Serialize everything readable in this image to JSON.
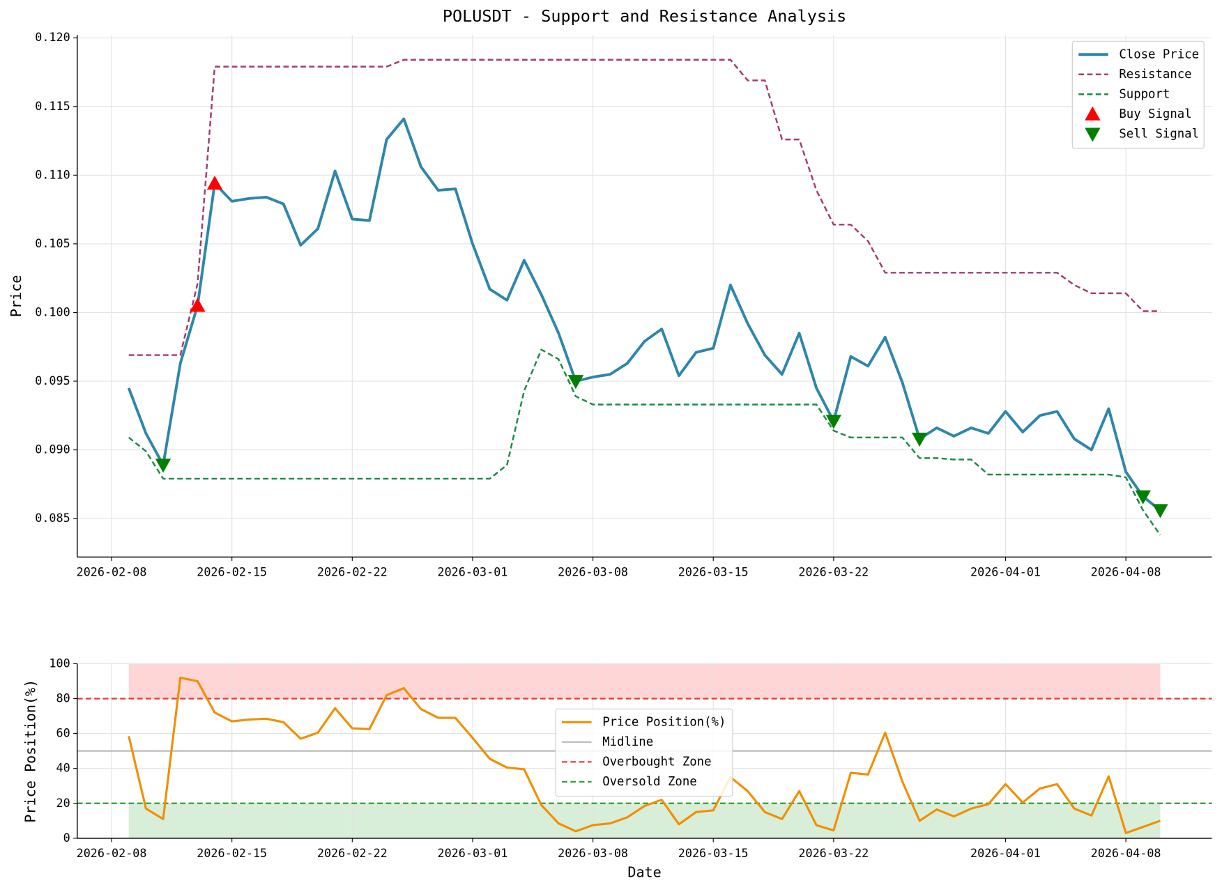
{
  "chart_data": [
    {
      "type": "line",
      "title": "POLUSDT - Support and Resistance Analysis",
      "y_label": "Price",
      "x": [
        "2026-02-09",
        "2026-02-10",
        "2026-02-11",
        "2026-02-12",
        "2026-02-13",
        "2026-02-14",
        "2026-02-15",
        "2026-02-16",
        "2026-02-17",
        "2026-02-18",
        "2026-02-19",
        "2026-02-20",
        "2026-02-21",
        "2026-02-22",
        "2026-02-23",
        "2026-02-24",
        "2026-02-25",
        "2026-02-26",
        "2026-02-27",
        "2026-02-28",
        "2026-03-01",
        "2026-03-02",
        "2026-03-03",
        "2026-03-04",
        "2026-03-05",
        "2026-03-06",
        "2026-03-07",
        "2026-03-08",
        "2026-03-09",
        "2026-03-10",
        "2026-03-11",
        "2026-03-12",
        "2026-03-13",
        "2026-03-14",
        "2026-03-15",
        "2026-03-16",
        "2026-03-17",
        "2026-03-18",
        "2026-03-19",
        "2026-03-20",
        "2026-03-21",
        "2026-03-22",
        "2026-03-23",
        "2026-03-24",
        "2026-03-25",
        "2026-03-26",
        "2026-03-27",
        "2026-03-28",
        "2026-03-29",
        "2026-03-30",
        "2026-03-31",
        "2026-04-01",
        "2026-04-02",
        "2026-04-03",
        "2026-04-04",
        "2026-04-05",
        "2026-04-06",
        "2026-04-07",
        "2026-04-08",
        "2026-04-09",
        "2026-04-10"
      ],
      "series": [
        {
          "name": "Close Price",
          "color": "#2E86AB",
          "style": "solid",
          "width": 3.5,
          "values": [
            0.0945,
            0.0912,
            0.0889,
            0.0963,
            0.1005,
            0.1094,
            0.1081,
            0.1083,
            0.1084,
            0.1079,
            0.1049,
            0.1061,
            0.1103,
            0.1068,
            0.1067,
            0.1126,
            0.1141,
            0.1106,
            0.1089,
            0.109,
            0.105,
            0.1017,
            0.1009,
            0.1038,
            0.1013,
            0.0985,
            0.095,
            0.0953,
            0.0955,
            0.0963,
            0.0979,
            0.0988,
            0.0954,
            0.0971,
            0.0974,
            0.102,
            0.0992,
            0.0969,
            0.0955,
            0.0985,
            0.0945,
            0.0921,
            0.0968,
            0.0961,
            0.0982,
            0.0949,
            0.0908,
            0.0916,
            0.091,
            0.0916,
            0.0912,
            0.0928,
            0.0913,
            0.0925,
            0.0928,
            0.0908,
            0.09,
            0.093,
            0.0884,
            0.0866,
            0.0856
          ]
        },
        {
          "name": "Resistance",
          "color": "#A23B72",
          "style": "dashed",
          "width": 2.2,
          "values": [
            0.0969,
            0.0969,
            0.0969,
            0.0969,
            0.1021,
            0.1179,
            0.1179,
            0.1179,
            0.1179,
            0.1179,
            0.1179,
            0.1179,
            0.1179,
            0.1179,
            0.1179,
            0.1179,
            0.1184,
            0.1184,
            0.1184,
            0.1184,
            0.1184,
            0.1184,
            0.1184,
            0.1184,
            0.1184,
            0.1184,
            0.1184,
            0.1184,
            0.1184,
            0.1184,
            0.1184,
            0.1184,
            0.1184,
            0.1184,
            0.1184,
            0.1184,
            0.1169,
            0.1169,
            0.1126,
            0.1126,
            0.1089,
            0.1064,
            0.1064,
            0.1052,
            0.1029,
            0.1029,
            0.1029,
            0.1029,
            0.1029,
            0.1029,
            0.1029,
            0.1029,
            0.1029,
            0.1029,
            0.1029,
            0.102,
            0.1014,
            0.1014,
            0.1014,
            0.1001,
            0.1001
          ]
        },
        {
          "name": "Support",
          "color": "#1B8A45",
          "style": "dashed",
          "width": 2.2,
          "values": [
            0.0909,
            0.0899,
            0.0879,
            0.0879,
            0.0879,
            0.0879,
            0.0879,
            0.0879,
            0.0879,
            0.0879,
            0.0879,
            0.0879,
            0.0879,
            0.0879,
            0.0879,
            0.0879,
            0.0879,
            0.0879,
            0.0879,
            0.0879,
            0.0879,
            0.0879,
            0.0889,
            0.0943,
            0.0973,
            0.0966,
            0.0939,
            0.0933,
            0.0933,
            0.0933,
            0.0933,
            0.0933,
            0.0933,
            0.0933,
            0.0933,
            0.0933,
            0.0933,
            0.0933,
            0.0933,
            0.0933,
            0.0933,
            0.0914,
            0.0909,
            0.0909,
            0.0909,
            0.0909,
            0.0894,
            0.0894,
            0.0893,
            0.0893,
            0.0882,
            0.0882,
            0.0882,
            0.0882,
            0.0882,
            0.0882,
            0.0882,
            0.0882,
            0.088,
            0.0856,
            0.0838
          ]
        },
        {
          "name": "Buy Signal",
          "color": "#FF0000",
          "marker": "up",
          "x": [
            "2026-02-13",
            "2026-02-14"
          ],
          "values": [
            0.1005,
            0.1094
          ]
        },
        {
          "name": "Sell Signal",
          "color": "#008000",
          "marker": "down",
          "x": [
            "2026-02-11",
            "2026-03-07",
            "2026-03-22",
            "2026-03-27",
            "2026-04-09",
            "2026-04-10"
          ],
          "values": [
            0.0889,
            0.095,
            0.0921,
            0.0908,
            0.0866,
            0.0856
          ]
        }
      ],
      "xlim": [
        "2026-02-06",
        "2026-04-13"
      ],
      "xticks": [
        "2026-02-08",
        "2026-02-15",
        "2026-02-22",
        "2026-03-01",
        "2026-03-08",
        "2026-03-15",
        "2026-03-22",
        "2026-04-01",
        "2026-04-08"
      ],
      "ylim": [
        0.0822,
        0.1202
      ],
      "yticks": [
        {
          "value": 0.085,
          "label": "0.085"
        },
        {
          "value": 0.09,
          "label": "0.090"
        },
        {
          "value": 0.095,
          "label": "0.095"
        },
        {
          "value": 0.1,
          "label": "0.100"
        },
        {
          "value": 0.105,
          "label": "0.105"
        },
        {
          "value": 0.11,
          "label": "0.110"
        },
        {
          "value": 0.115,
          "label": "0.115"
        },
        {
          "value": 0.12,
          "label": "0.120"
        }
      ],
      "grid": true,
      "legend": "upper right"
    },
    {
      "type": "line",
      "x_label": "Date",
      "y_label": "Price Position(%)",
      "series": [
        {
          "name": "Price Position(%)",
          "color": "#F18F01",
          "style": "solid",
          "width": 2.8,
          "values": [
            58.5,
            17,
            11,
            92,
            90,
            72,
            67,
            68,
            68.5,
            66.5,
            57,
            60.5,
            74.5,
            63,
            62.5,
            82,
            86,
            74,
            69,
            69,
            57.5,
            45.5,
            40.5,
            39.5,
            19,
            8.5,
            4,
            7.5,
            8.5,
            12,
            18.5,
            22,
            8,
            15,
            16,
            35,
            27,
            15,
            11,
            27,
            7.5,
            4.5,
            37.5,
            36.5,
            60.5,
            32.5,
            10,
            16.5,
            12.5,
            17,
            19.5,
            31,
            20.5,
            28.5,
            31,
            17,
            13,
            35.5,
            3,
            6.5,
            10
          ]
        }
      ],
      "hlines": [
        {
          "name": "Midline",
          "value": 50,
          "color": "#BBBBBB",
          "style": "solid"
        },
        {
          "name": "Overbought Zone",
          "value": 80,
          "color": "#EE3333",
          "style": "dashed",
          "zone": "above",
          "zone_color": "#FFD6D6"
        },
        {
          "name": "Oversold Zone",
          "value": 20,
          "color": "#2CA02C",
          "style": "dashed",
          "zone": "below",
          "zone_color": "#D9EED9"
        }
      ],
      "ylim": [
        0,
        100
      ],
      "yticks": [
        0,
        20,
        40,
        60,
        80,
        100
      ],
      "grid": true,
      "legend": "center"
    }
  ]
}
